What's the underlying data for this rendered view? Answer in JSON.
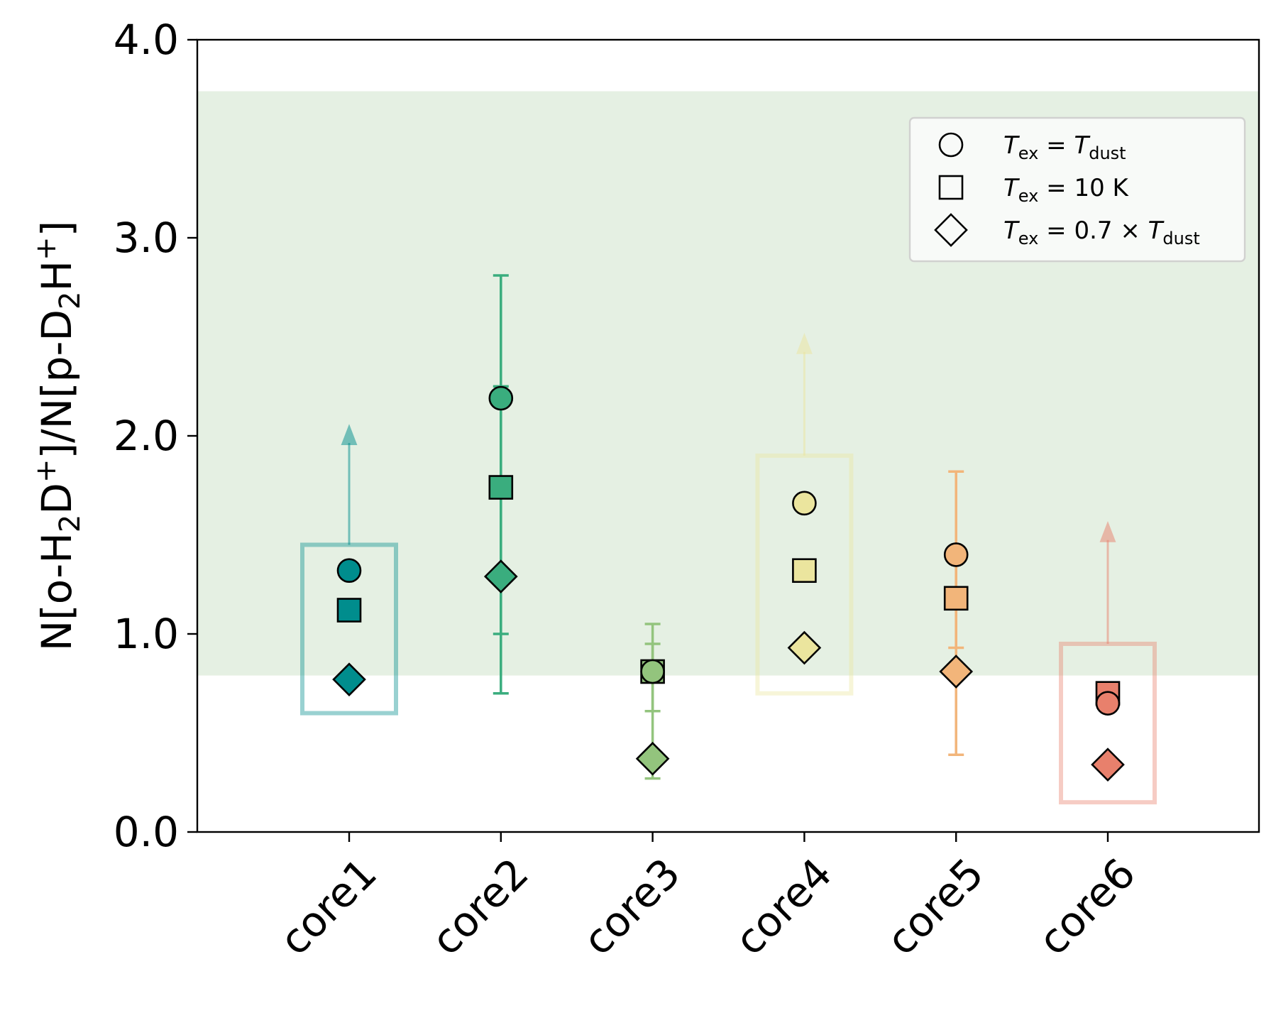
{
  "chart_data": {
    "type": "scatter",
    "title": "",
    "xlabel": "",
    "ylabel": "N[o-H2D+]/N[p-D2H+]",
    "ylim": [
      0.0,
      4.0
    ],
    "yticks": [
      "0.0",
      "1.0",
      "2.0",
      "3.0",
      "4.0"
    ],
    "categories": [
      "core1",
      "core2",
      "core3",
      "core4",
      "core5",
      "core6"
    ],
    "shaded_band": {
      "y_from": 0.79,
      "y_to": 3.74,
      "color": "#e5f0e3"
    },
    "colors": {
      "core1": "#008d8d",
      "core2": "#3aad7e",
      "core3": "#93c47d",
      "core4": "#ebe59e",
      "core5": "#f2b57a",
      "core6": "#e8806c"
    },
    "series": [
      {
        "name": "T_ex = T_dust",
        "marker": "circle",
        "values": [
          1.32,
          2.19,
          0.81,
          1.66,
          1.4,
          0.65
        ]
      },
      {
        "name": "T_ex = 10 K",
        "marker": "square",
        "values": [
          1.12,
          1.74,
          0.81,
          1.32,
          1.18,
          0.7
        ]
      },
      {
        "name": "T_ex = 0.7 x T_dust",
        "marker": "diamond",
        "values": [
          0.77,
          1.29,
          0.37,
          0.93,
          0.81,
          0.34
        ]
      }
    ],
    "error_bars": [
      {
        "core": "core2",
        "lows": [
          0.7,
          1.0
        ],
        "highs": [
          2.81,
          2.25
        ]
      },
      {
        "core": "core3",
        "lows": [
          0.61,
          0.27
        ],
        "highs": [
          1.05,
          0.95
        ]
      },
      {
        "core": "core5",
        "lows": [
          0.39,
          0.93
        ],
        "highs": [
          1.82,
          1.4
        ]
      }
    ],
    "lower_limits": [
      {
        "core": "core1",
        "box": [
          0.6,
          1.45
        ],
        "arrow_to": 2.05
      },
      {
        "core": "core4",
        "box": [
          0.7,
          1.9
        ],
        "arrow_to": 2.51
      },
      {
        "core": "core6",
        "box": [
          0.15,
          0.95
        ],
        "arrow_to": 1.56
      }
    ],
    "legend": {
      "placement": "top-right",
      "entries": [
        {
          "marker": "circle",
          "var": "T",
          "sub": "ex",
          "eq": " = ",
          "rhs_prefix": "",
          "rhs_var": "T",
          "rhs_sub": "dust",
          "rhs_text": ""
        },
        {
          "marker": "square",
          "var": "T",
          "sub": "ex",
          "eq": " = ",
          "rhs_prefix": "10 K",
          "rhs_var": "",
          "rhs_sub": "",
          "rhs_text": ""
        },
        {
          "marker": "diamond",
          "var": "T",
          "sub": "ex",
          "eq": " = ",
          "rhs_prefix": "0.7 × ",
          "rhs_var": "T",
          "rhs_sub": "dust",
          "rhs_text": ""
        }
      ]
    }
  }
}
